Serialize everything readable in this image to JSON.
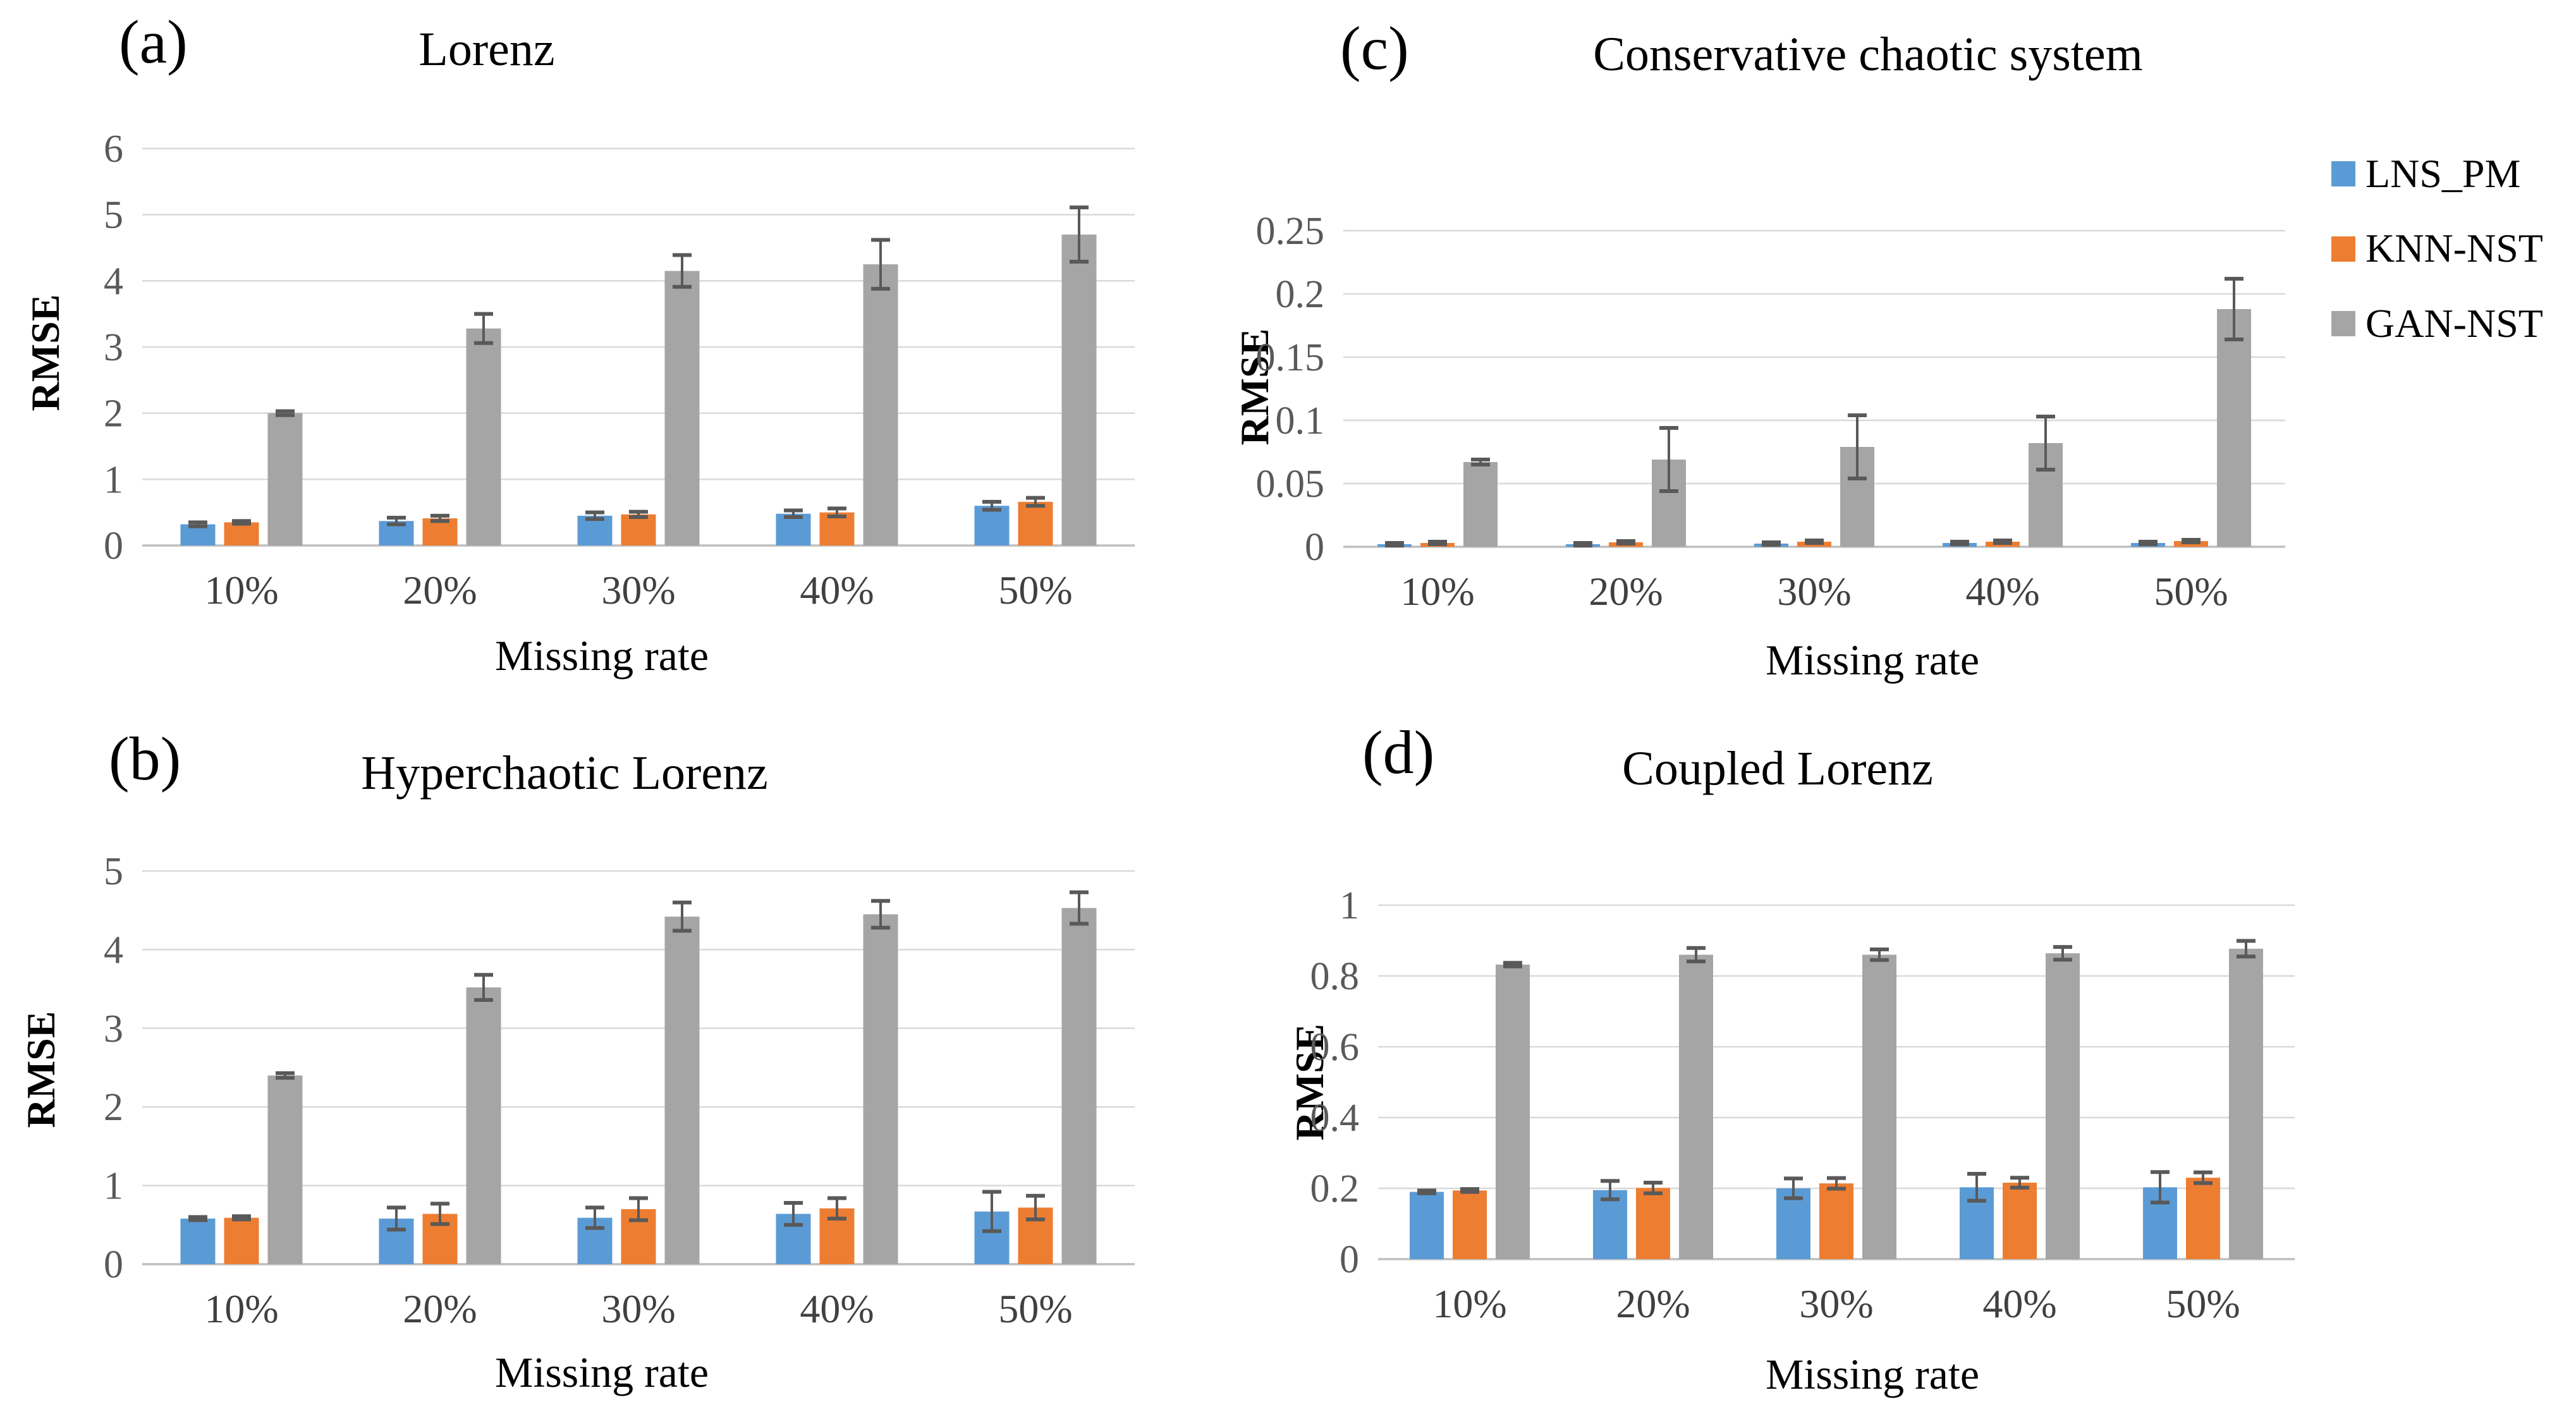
{
  "legend": {
    "items": [
      {
        "label": "LNS_PM",
        "color": "#5B9BD5"
      },
      {
        "label": "KNN-NST",
        "color": "#ED7D31"
      },
      {
        "label": "GAN-NST",
        "color": "#A5A5A5"
      }
    ]
  },
  "colors": {
    "gridline": "#D9D9D9",
    "axis_line": "#BFBFBF",
    "error_bar": "#595959",
    "ytick_text": "#595959",
    "xtick_text": "#404040"
  },
  "chart_data": [
    {
      "type": "bar",
      "panel_label": "(a)",
      "title": "Lorenz",
      "xlabel": "Missing rate",
      "ylabel": "RMSE",
      "categories": [
        "10%",
        "20%",
        "30%",
        "40%",
        "50%"
      ],
      "ylim": [
        0,
        6
      ],
      "yticks": [
        0,
        1,
        2,
        3,
        4,
        5,
        6
      ],
      "ytick_labels": [
        "0",
        "1",
        "2",
        "3",
        "4",
        "5",
        "6"
      ],
      "grid": true,
      "series": [
        {
          "name": "LNS_PM",
          "color": "#5B9BD5",
          "values": [
            0.32,
            0.37,
            0.45,
            0.48,
            0.6
          ],
          "errors": [
            0.03,
            0.05,
            0.05,
            0.05,
            0.06
          ]
        },
        {
          "name": "KNN-NST",
          "color": "#ED7D31",
          "values": [
            0.35,
            0.41,
            0.47,
            0.5,
            0.66
          ],
          "errors": [
            0.02,
            0.04,
            0.04,
            0.06,
            0.06
          ]
        },
        {
          "name": "GAN-NST",
          "color": "#A5A5A5",
          "values": [
            2.0,
            3.28,
            4.15,
            4.25,
            4.7
          ],
          "errors": [
            0.03,
            0.22,
            0.24,
            0.37,
            0.41
          ]
        }
      ]
    },
    {
      "type": "bar",
      "panel_label": "(b)",
      "title": "Hyperchaotic Lorenz",
      "xlabel": "Missing rate",
      "ylabel": "RMSE",
      "categories": [
        "10%",
        "20%",
        "30%",
        "40%",
        "50%"
      ],
      "ylim": [
        0,
        5
      ],
      "yticks": [
        0,
        1,
        2,
        3,
        4,
        5
      ],
      "ytick_labels": [
        "0",
        "1",
        "2",
        "3",
        "4",
        "5"
      ],
      "grid": true,
      "series": [
        {
          "name": "LNS_PM",
          "color": "#5B9BD5",
          "values": [
            0.58,
            0.58,
            0.59,
            0.64,
            0.67
          ],
          "errors": [
            0.02,
            0.14,
            0.13,
            0.14,
            0.25
          ]
        },
        {
          "name": "KNN-NST",
          "color": "#ED7D31",
          "values": [
            0.59,
            0.64,
            0.7,
            0.71,
            0.72
          ],
          "errors": [
            0.02,
            0.13,
            0.14,
            0.13,
            0.15
          ]
        },
        {
          "name": "GAN-NST",
          "color": "#A5A5A5",
          "values": [
            2.4,
            3.52,
            4.42,
            4.45,
            4.53
          ],
          "errors": [
            0.03,
            0.16,
            0.18,
            0.17,
            0.2
          ]
        }
      ]
    },
    {
      "type": "bar",
      "panel_label": "(c)",
      "title": "Conservative chaotic system",
      "xlabel": "Missing rate",
      "ylabel": "RMSE",
      "categories": [
        "10%",
        "20%",
        "30%",
        "40%",
        "50%"
      ],
      "ylim": [
        0,
        0.25
      ],
      "yticks": [
        0,
        0.05,
        0.1,
        0.15,
        0.2,
        0.25
      ],
      "ytick_labels": [
        "0",
        "0.05",
        "0.1",
        "0.15",
        "0.2",
        "0.25"
      ],
      "grid": true,
      "series": [
        {
          "name": "LNS_PM",
          "color": "#5B9BD5",
          "values": [
            0.002,
            0.002,
            0.0025,
            0.003,
            0.003
          ],
          "errors": [
            0.001,
            0.001,
            0.001,
            0.001,
            0.001
          ]
        },
        {
          "name": "KNN-NST",
          "color": "#ED7D31",
          "values": [
            0.003,
            0.0035,
            0.004,
            0.004,
            0.0045
          ],
          "errors": [
            0.001,
            0.001,
            0.001,
            0.001,
            0.001
          ]
        },
        {
          "name": "GAN-NST",
          "color": "#A5A5A5",
          "values": [
            0.067,
            0.069,
            0.079,
            0.082,
            0.188
          ],
          "errors": [
            0.002,
            0.025,
            0.025,
            0.021,
            0.024
          ]
        }
      ]
    },
    {
      "type": "bar",
      "panel_label": "(d)",
      "title": "Coupled Lorenz",
      "xlabel": "Missing rate",
      "ylabel": "RMSE",
      "categories": [
        "10%",
        "20%",
        "30%",
        "40%",
        "50%"
      ],
      "ylim": [
        0,
        1
      ],
      "yticks": [
        0,
        0.2,
        0.4,
        0.6,
        0.8,
        1
      ],
      "ytick_labels": [
        "0",
        "0.2",
        "0.4",
        "0.6",
        "0.8",
        "1"
      ],
      "grid": true,
      "series": [
        {
          "name": "LNS_PM",
          "color": "#5B9BD5",
          "values": [
            0.19,
            0.195,
            0.2,
            0.203,
            0.203
          ],
          "errors": [
            0.004,
            0.026,
            0.028,
            0.038,
            0.043
          ]
        },
        {
          "name": "KNN-NST",
          "color": "#ED7D31",
          "values": [
            0.194,
            0.201,
            0.214,
            0.216,
            0.23
          ],
          "errors": [
            0.004,
            0.015,
            0.015,
            0.014,
            0.015
          ]
        },
        {
          "name": "GAN-NST",
          "color": "#A5A5A5",
          "values": [
            0.832,
            0.86,
            0.86,
            0.864,
            0.877
          ],
          "errors": [
            0.005,
            0.019,
            0.015,
            0.018,
            0.022
          ]
        }
      ]
    }
  ]
}
